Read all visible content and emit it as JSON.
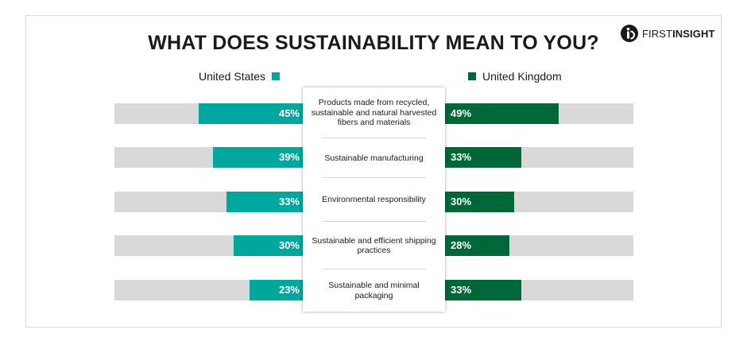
{
  "chart_data": {
    "type": "bar",
    "title": "WHAT DOES SUSTAINABILITY MEAN TO YOU?",
    "categories": [
      "Products made from recycled, sustainable and natural harvested fibers and materials",
      "Sustainable manufacturing",
      "Environmental responsibility",
      "Sustainable and efficient shipping practices",
      "Sustainable and minimal packaging"
    ],
    "series": [
      {
        "name": "United States",
        "values": [
          45,
          39,
          33,
          30,
          23
        ],
        "labels": [
          "45%",
          "39%",
          "33%",
          "30%",
          "23%"
        ],
        "color": "#00a79d"
      },
      {
        "name": "United Kingdom",
        "values": [
          49,
          33,
          30,
          28,
          33
        ],
        "labels": [
          "49%",
          "33%",
          "30%",
          "28%",
          "33%"
        ],
        "color": "#006838"
      }
    ],
    "xlim": [
      0,
      100
    ],
    "grid": false,
    "legend": "top"
  },
  "brand": {
    "logo_text_bold": "FIRST",
    "logo_text": "INSIGHT",
    "track_color": "#d9d9d9"
  }
}
